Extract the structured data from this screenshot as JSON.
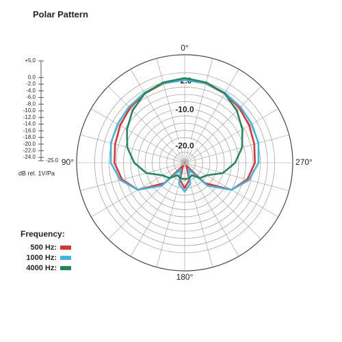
{
  "chart_data": {
    "type": "polar",
    "title": "Polar Pattern",
    "r_axis_label": "dB rel. 1V/Pa",
    "legend_title": "Frequency:",
    "rlim": [
      -25,
      5
    ],
    "rticks": [
      {
        "value": 5,
        "label": "+5.0"
      },
      {
        "value": 0,
        "label": "0.0"
      },
      {
        "value": -2,
        "label": "-2.0"
      },
      {
        "value": -4,
        "label": "-4.0"
      },
      {
        "value": -6,
        "label": "-6.0"
      },
      {
        "value": -8,
        "label": "-8.0"
      },
      {
        "value": -10,
        "label": "-10.0"
      },
      {
        "value": -12,
        "label": "-12.0"
      },
      {
        "value": -14,
        "label": "-14.0"
      },
      {
        "value": -16,
        "label": "-16.0"
      },
      {
        "value": -18,
        "label": "-18.0"
      },
      {
        "value": -20,
        "label": "-20.0"
      },
      {
        "value": -22,
        "label": "-22.0"
      },
      {
        "value": -24,
        "label": "-24.0"
      },
      {
        "value": -25,
        "label": "-25.0"
      }
    ],
    "ring_labels": [
      {
        "value": -2,
        "label": "-2.0"
      },
      {
        "value": -10,
        "label": "-10.0"
      },
      {
        "value": -20,
        "label": "-20.0"
      }
    ],
    "angle_labels": [
      {
        "value": 0,
        "label": "0°"
      },
      {
        "value": 90,
        "label": "90°"
      },
      {
        "value": 180,
        "label": "180°"
      },
      {
        "value": 270,
        "label": "270°"
      }
    ],
    "theta": [
      0,
      15,
      30,
      45,
      60,
      75,
      90,
      105,
      120,
      135,
      150,
      165,
      180,
      195,
      210,
      225,
      240,
      255,
      270,
      285,
      300,
      315,
      330,
      345
    ],
    "series": [
      {
        "name": "500 Hz:",
        "color": "#e8312a",
        "values": [
          -2,
          -2.2,
          -2.8,
          -3.5,
          -4.3,
          -5,
          -5.5,
          -7,
          -10,
          -17,
          -24,
          -20,
          -18,
          -20,
          -24,
          -17,
          -10,
          -7,
          -5.5,
          -5,
          -4.3,
          -3.5,
          -2.8,
          -2.2
        ]
      },
      {
        "name": "1000 Hz:",
        "color": "#3bb6e6",
        "values": [
          -2,
          -2.1,
          -2.6,
          -3.1,
          -3.5,
          -3.8,
          -4.5,
          -6.5,
          -10,
          -16,
          -23,
          -19,
          -17,
          -19,
          -23,
          -16,
          -10,
          -6.5,
          -4.5,
          -3.8,
          -3.5,
          -3.1,
          -2.6,
          -2.1
        ]
      },
      {
        "name": "4000 Hz:",
        "color": "#1e8a57",
        "values": [
          -1.5,
          -1.9,
          -2.8,
          -4.5,
          -6.5,
          -8.5,
          -11,
          -14,
          -18,
          -19,
          -21,
          -20.5,
          -20.5,
          -20.5,
          -21,
          -19,
          -18,
          -14,
          -11,
          -8.5,
          -6.5,
          -4.5,
          -2.8,
          -1.9
        ]
      }
    ]
  }
}
